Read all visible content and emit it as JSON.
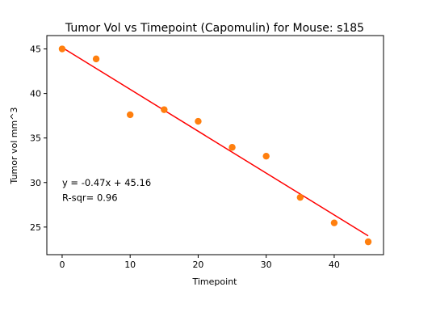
{
  "chart_data": {
    "type": "scatter",
    "title": "Tumor Vol vs Timepoint (Capomulin) for Mouse: s185",
    "xlabel": "Timepoint",
    "ylabel": "Tumor vol mm^3",
    "xlim": [
      -2.25,
      47.25
    ],
    "ylim": [
      21.9,
      46.5
    ],
    "xticks": [
      0,
      10,
      20,
      30,
      40
    ],
    "yticks": [
      25,
      30,
      35,
      40,
      45
    ],
    "grid": false,
    "colors": {
      "points": "#ff7f0e",
      "regression": "#ff0000",
      "axes": "#000000"
    },
    "points": {
      "x": [
        0,
        5,
        10,
        15,
        20,
        25,
        30,
        35,
        40,
        45
      ],
      "y": [
        45.0,
        43.88,
        37.61,
        38.18,
        36.87,
        33.95,
        32.96,
        28.33,
        25.47,
        23.34
      ]
    },
    "regression": {
      "slope": -0.47,
      "intercept": 45.16,
      "x": [
        0,
        45
      ]
    },
    "annotations": {
      "equation": "y = -0.47x + 45.16",
      "r_squared": "R-sqr= 0.96",
      "equation_pos": [
        0,
        30
      ],
      "r_squared_pos": [
        0,
        28.3
      ]
    }
  }
}
